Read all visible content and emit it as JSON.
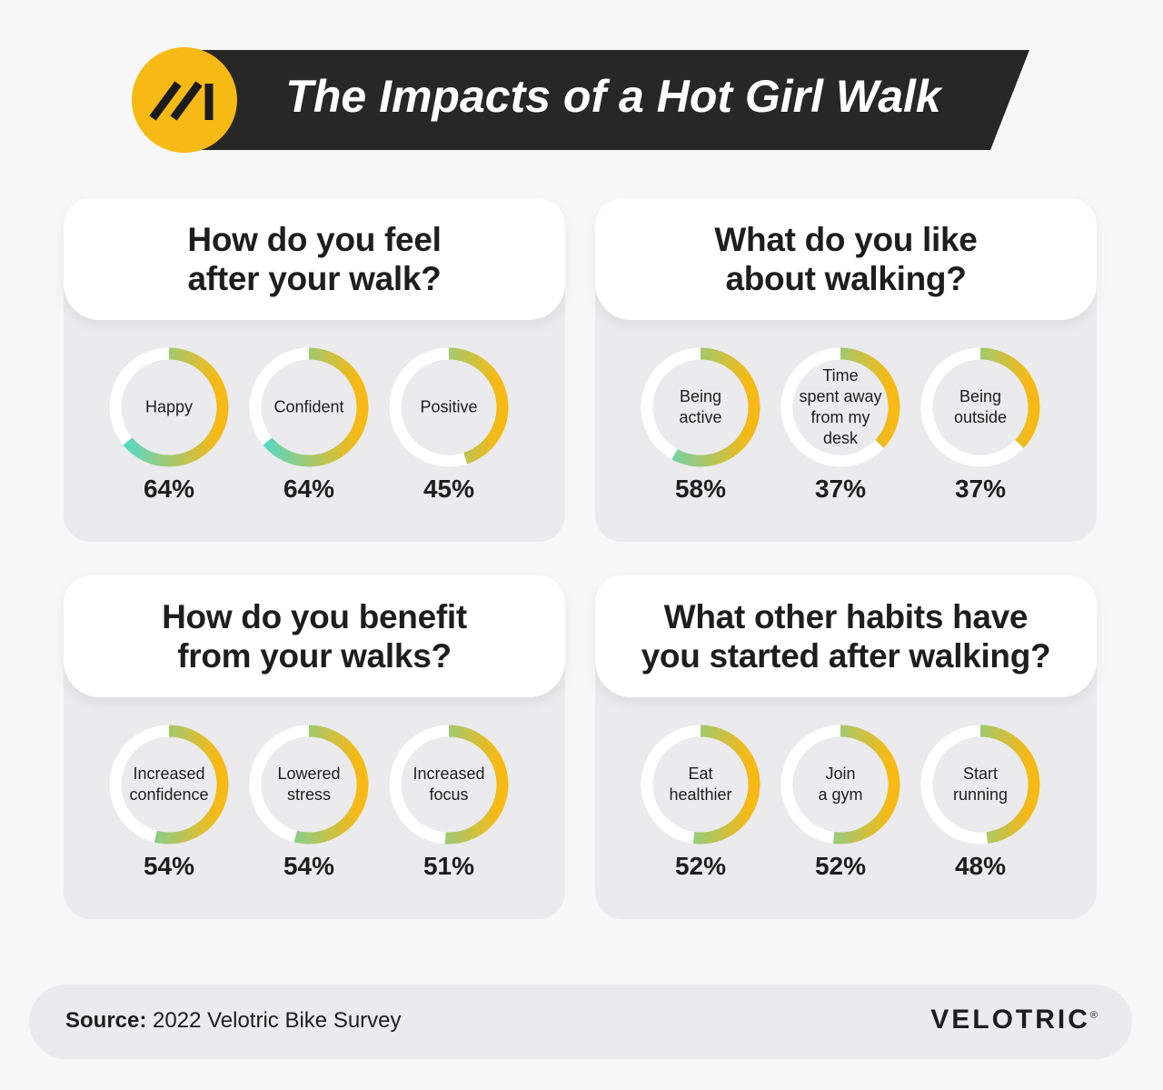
{
  "title": "The Impacts of a Hot Girl Walk",
  "chart_data": [
    {
      "type": "donut",
      "title": "How do you feel\nafter your walk?",
      "categories": [
        "Happy",
        "Confident",
        "Positive"
      ],
      "values": [
        64,
        64,
        45
      ],
      "value_labels": [
        "64%",
        "64%",
        "45%"
      ],
      "colors": [
        "#4fd9cc",
        "#f6b915"
      ]
    },
    {
      "type": "donut",
      "title": "What do you like\nabout walking?",
      "categories": [
        "Being\nactive",
        "Time\nspent away\nfrom my\ndesk",
        "Being\noutside"
      ],
      "values": [
        58,
        37,
        37
      ],
      "value_labels": [
        "58%",
        "37%",
        "37%"
      ],
      "colors": [
        "#4fd9cc",
        "#f6b915"
      ]
    },
    {
      "type": "donut",
      "title": "How do you benefit\nfrom your walks?",
      "categories": [
        "Increased\nconfidence",
        "Lowered\nstress",
        "Increased\nfocus"
      ],
      "values": [
        54,
        54,
        51
      ],
      "value_labels": [
        "54%",
        "54%",
        "51%"
      ],
      "colors": [
        "#4fd9cc",
        "#f6b915"
      ]
    },
    {
      "type": "donut",
      "title": "What other habits have\nyou started after walking?",
      "categories": [
        "Eat\nhealthier",
        "Join\na gym",
        "Start\nrunning"
      ],
      "values": [
        52,
        52,
        48
      ],
      "value_labels": [
        "52%",
        "52%",
        "48%"
      ],
      "colors": [
        "#4fd9cc",
        "#f6b915"
      ]
    }
  ],
  "source": {
    "label": "Source:",
    "text": "2022 Velotric Bike Survey"
  },
  "brand": "VELOTRIC",
  "brand_mark": "®"
}
